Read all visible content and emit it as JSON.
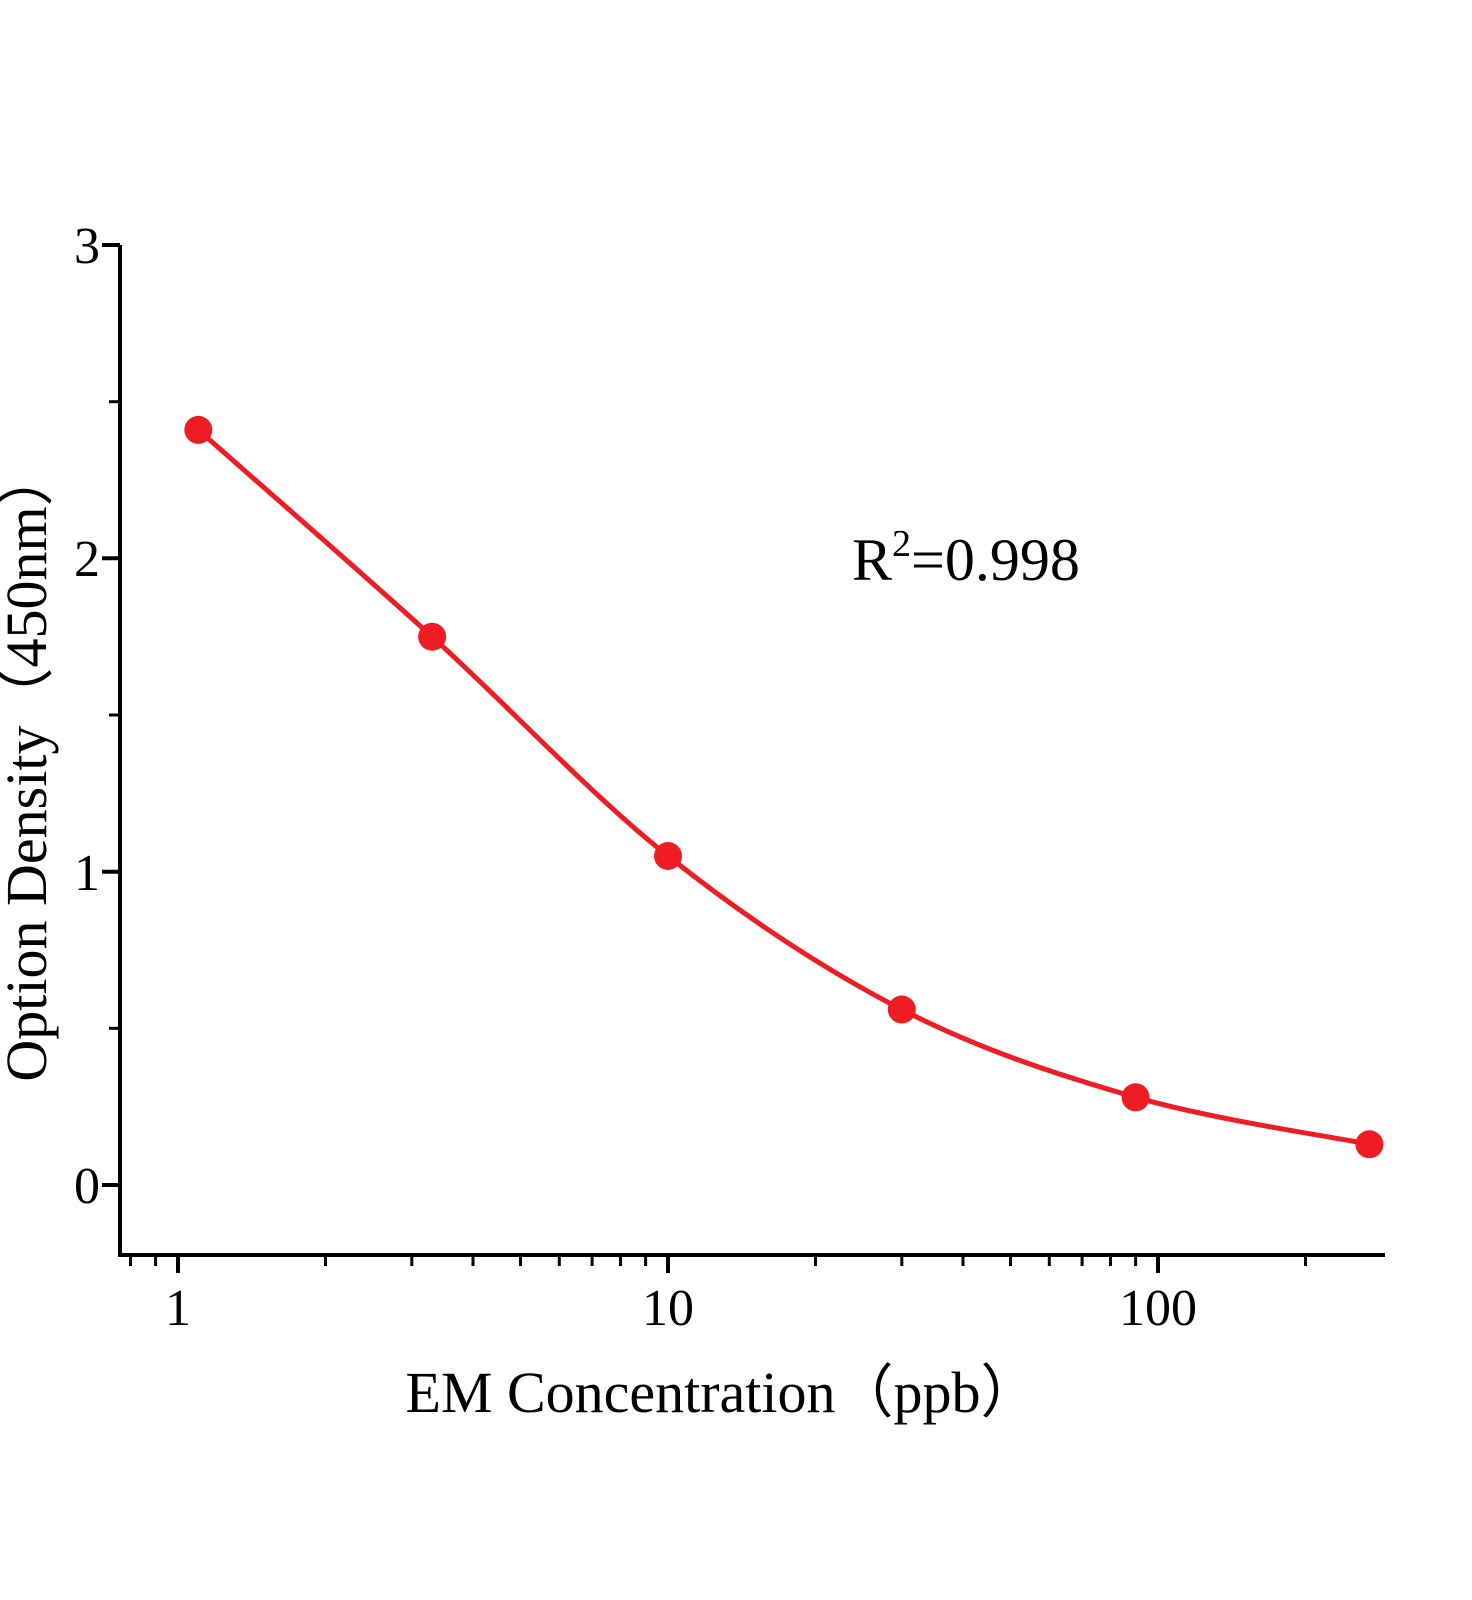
{
  "figure": {
    "background": "#ffffff"
  },
  "chart_data": {
    "type": "scatter",
    "x_scale": "log",
    "x": [
      1.1,
      3.3,
      10,
      30,
      90,
      270
    ],
    "y": [
      2.41,
      1.75,
      1.05,
      0.56,
      0.28,
      0.13
    ],
    "title": "",
    "xlabel": "EM Concentration（ppb）",
    "ylabel": "Option Density（450nm）",
    "xlim": [
      0.76,
      320
    ],
    "ylim": [
      -0.22,
      3
    ],
    "x_ticks": [
      1,
      10,
      100
    ],
    "y_ticks": [
      0,
      1,
      2,
      3
    ],
    "y_minor_ticks": [
      0.5,
      1.5,
      2.5
    ],
    "grid": false,
    "legend": false,
    "annotation": {
      "base": "R",
      "superscript": "2",
      "rest": "=0.998",
      "text": "R²=0.998"
    },
    "colors": {
      "curve": "#ee1d23",
      "marker": "#ee1d23",
      "axis": "#000000",
      "text": "#000000"
    }
  }
}
